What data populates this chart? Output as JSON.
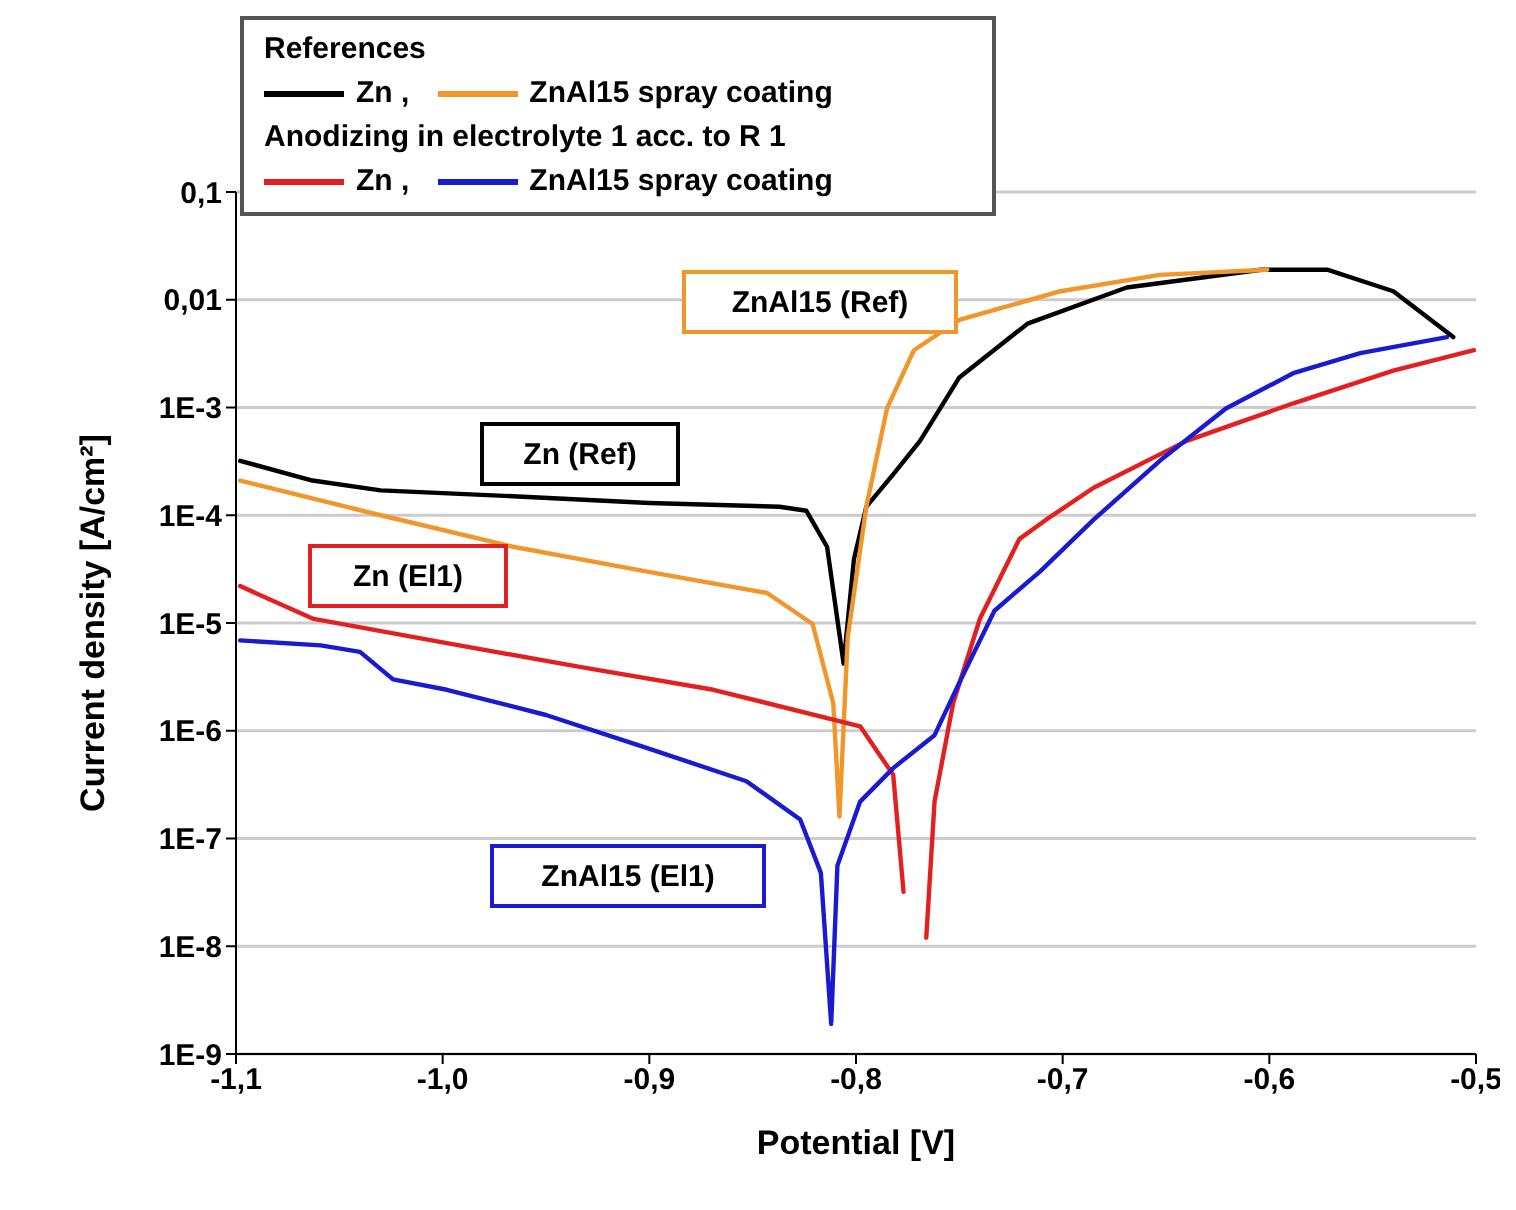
{
  "chart_data": {
    "type": "line",
    "xlabel": "Potential [V]",
    "ylabel": "Current density [A/cm²]",
    "log": "y",
    "grid": "y",
    "legend": "top",
    "marker": "none",
    "line_style": "solid",
    "xlim": [
      -1.1,
      -0.5
    ],
    "xticks": [
      {
        "value": -1.1,
        "label": "-1,1"
      },
      {
        "value": -1.0,
        "label": "-1,0"
      },
      {
        "value": -0.9,
        "label": "-0,9"
      },
      {
        "value": -0.8,
        "label": "-0,8"
      },
      {
        "value": -0.7,
        "label": "-0,7"
      },
      {
        "value": -0.6,
        "label": "-0,6"
      },
      {
        "value": -0.5,
        "label": "-0,5"
      }
    ],
    "ylim": [
      1e-09,
      0.1
    ],
    "yticks": [
      {
        "value": 1e-09,
        "label": "1E-9"
      },
      {
        "value": 1e-08,
        "label": "1E-8"
      },
      {
        "value": 1e-07,
        "label": "1E-7"
      },
      {
        "value": 1e-06,
        "label": "1E-6"
      },
      {
        "value": 1e-05,
        "label": "1E-5"
      },
      {
        "value": 0.0001,
        "label": "1E-4"
      },
      {
        "value": 0.001,
        "label": "1E-3"
      },
      {
        "value": 0.01,
        "label": "0,01"
      },
      {
        "value": 0.1,
        "label": "0,1"
      }
    ],
    "series": [
      {
        "name": "Zn ,",
        "color": "#000000",
        "x": [
          -1.098,
          -1.063,
          -1.03,
          -0.966,
          -0.9,
          -0.837,
          -0.824,
          -0.814,
          -0.806,
          -0.801,
          -0.795,
          -0.782,
          -0.769,
          -0.75,
          -0.717,
          -0.669,
          -0.604,
          -0.572,
          -0.54,
          -0.511
        ],
        "values": [
          0.00032,
          0.00021,
          0.00017,
          0.00015,
          0.00013,
          0.00012,
          0.00011,
          5.1e-05,
          4.2e-06,
          3.9e-05,
          0.00012,
          0.00024,
          0.00049,
          0.0019,
          0.006,
          0.013,
          0.019,
          0.019,
          0.012,
          0.0045
        ]
      },
      {
        "name": "ZnAl15 spray coating",
        "color": "#f0962a",
        "x": [
          -1.098,
          -1.03,
          -0.966,
          -0.901,
          -0.843,
          -0.821,
          -0.811,
          -0.808,
          -0.804,
          -0.795,
          -0.785,
          -0.772,
          -0.75,
          -0.701,
          -0.653,
          -0.601
        ],
        "values": [
          0.00021,
          0.0001,
          5.1e-05,
          3e-05,
          1.9e-05,
          9.8e-06,
          1.8e-06,
          1.6e-07,
          7.4e-06,
          0.00012,
          0.00098,
          0.0034,
          0.0065,
          0.012,
          0.017,
          0.019
        ]
      },
      {
        "name": "Zn ,",
        "color": "#e32020",
        "x": [
          -1.098,
          -1.063,
          -0.998,
          -0.933,
          -0.869,
          -0.798,
          -0.782,
          -0.777,
          -0.772,
          -0.766,
          -0.762,
          -0.753,
          -0.74,
          -0.721,
          -0.708,
          -0.685,
          -0.64,
          -0.588,
          -0.54,
          -0.501
        ],
        "values": [
          2.2e-05,
          1.1e-05,
          6.5e-06,
          3.9e-06,
          2.4e-06,
          1.1e-06,
          3.9e-07,
          3.2e-08,
          null,
          1.2e-08,
          2.2e-07,
          1.8e-06,
          1.1e-05,
          6e-05,
          9.1e-05,
          0.00018,
          0.00049,
          0.0011,
          0.0022,
          0.0034
        ]
      },
      {
        "name": "ZnAl15 spray coating",
        "color": "#1a1ad0",
        "x": [
          -1.098,
          -1.059,
          -1.04,
          -1.024,
          -0.998,
          -0.95,
          -0.901,
          -0.853,
          -0.827,
          -0.817,
          -0.812,
          -0.809,
          -0.798,
          -0.782,
          -0.762,
          -0.75,
          -0.733,
          -0.711,
          -0.685,
          -0.653,
          -0.621,
          -0.588,
          -0.556,
          -0.514
        ],
        "values": [
          6.9e-06,
          6.2e-06,
          5.4e-06,
          3e-06,
          2.4e-06,
          1.4e-06,
          6.9e-07,
          3.4e-07,
          1.5e-07,
          4.8e-08,
          1.9e-09,
          5.6e-08,
          2.2e-07,
          4.5e-07,
          9.1e-07,
          2.8e-06,
          1.3e-05,
          3e-05,
          9.1e-05,
          0.00032,
          0.00098,
          0.0021,
          0.0032,
          0.0045
        ]
      }
    ],
    "annotations": [
      "References",
      "Anodizing in electrolyte 1 acc. to R 1",
      "Zn (Ref)",
      "ZnAl15 (Ref)",
      "Zn (El1)",
      "ZnAl15 (El1)"
    ]
  }
}
